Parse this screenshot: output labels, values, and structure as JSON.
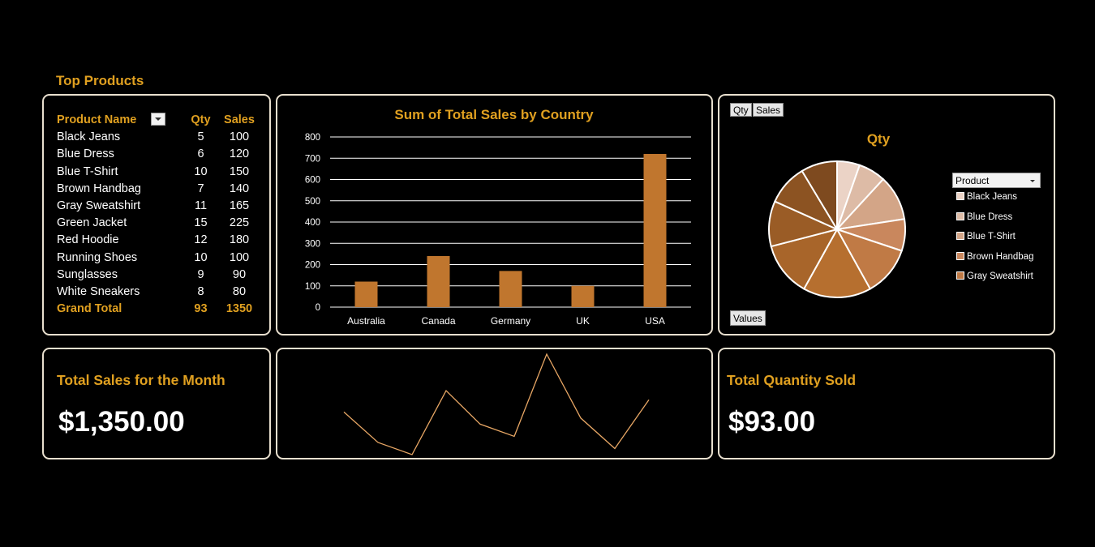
{
  "top_products": {
    "title": "Top Products",
    "headers": {
      "name": "Product Name",
      "qty": "Qty",
      "sales": "Sales"
    },
    "rows": [
      {
        "name": "Black Jeans",
        "qty": "5",
        "sales": "100"
      },
      {
        "name": "Blue Dress",
        "qty": "6",
        "sales": "120"
      },
      {
        "name": "Blue T-Shirt",
        "qty": "10",
        "sales": "150"
      },
      {
        "name": "Brown Handbag",
        "qty": "7",
        "sales": "140"
      },
      {
        "name": "Gray Sweatshirt",
        "qty": "11",
        "sales": "165"
      },
      {
        "name": "Green Jacket",
        "qty": "15",
        "sales": "225"
      },
      {
        "name": "Red Hoodie",
        "qty": "12",
        "sales": "180"
      },
      {
        "name": "Running Shoes",
        "qty": "10",
        "sales": "100"
      },
      {
        "name": "Sunglasses",
        "qty": "9",
        "sales": "90"
      },
      {
        "name": "White Sneakers",
        "qty": "8",
        "sales": "80"
      }
    ],
    "total": {
      "name": "Grand Total",
      "qty": "93",
      "sales": "1350"
    }
  },
  "pie_panel": {
    "field_qty": "Qty",
    "field_sales": "Sales",
    "values_button": "Values",
    "filter_label": "Product",
    "legend": [
      {
        "label": "Black Jeans",
        "color": "#EBD3C6"
      },
      {
        "label": "Blue Dress",
        "color": "#DDBBA6"
      },
      {
        "label": "Blue T-Shirt",
        "color": "#D3A587"
      },
      {
        "label": "Brown Handbag",
        "color": "#C9875D"
      },
      {
        "label": "Gray Sweatshirt",
        "color": "#C07A45"
      }
    ]
  },
  "kpi": {
    "sales_label": "Total Sales for the Month",
    "sales_value": "$1,350.00",
    "qty_label": "Total Quantity Sold",
    "qty_value": "$93.00"
  },
  "colors": {
    "accent": "#E0A020",
    "bar": "#C0762E",
    "line": "#E8A765",
    "border": "#E9E0CF"
  },
  "chart_data": [
    {
      "type": "bar",
      "title": "Sum of Total Sales by Country",
      "categories": [
        "Australia",
        "Canada",
        "Germany",
        "UK",
        "USA"
      ],
      "values": [
        120,
        240,
        170,
        100,
        720
      ],
      "ylim": [
        0,
        800
      ],
      "yticks": [
        0,
        100,
        200,
        300,
        400,
        500,
        600,
        700,
        800
      ],
      "grid": true
    },
    {
      "type": "pie",
      "title": "Qty",
      "categories": [
        "Black Jeans",
        "Blue Dress",
        "Blue T-Shirt",
        "Brown Handbag",
        "Gray Sweatshirt",
        "Green Jacket",
        "Red Hoodie",
        "Running Shoes",
        "Sunglasses",
        "White Sneakers"
      ],
      "values": [
        5,
        6,
        10,
        7,
        11,
        15,
        12,
        10,
        9,
        8
      ],
      "colors": [
        "#EBD3C6",
        "#DDBBA6",
        "#D3A587",
        "#C9875D",
        "#C07A45",
        "#B66F2F",
        "#A8652A",
        "#9A5C26",
        "#8C5322",
        "#7E4A1F"
      ]
    },
    {
      "type": "line",
      "values": [
        100,
        120,
        150,
        140,
        165,
        225,
        180,
        100,
        90,
        80
      ],
      "note_values": [
        165,
        225,
        180,
        100,
        90,
        80,
        120,
        150,
        140,
        100
      ]
    }
  ]
}
